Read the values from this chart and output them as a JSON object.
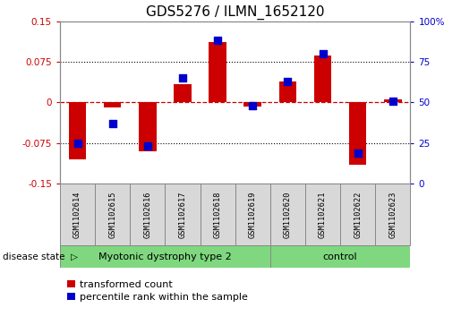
{
  "title": "GDS5276 / ILMN_1652120",
  "categories": [
    "GSM1102614",
    "GSM1102615",
    "GSM1102616",
    "GSM1102617",
    "GSM1102618",
    "GSM1102619",
    "GSM1102620",
    "GSM1102621",
    "GSM1102622",
    "GSM1102623"
  ],
  "red_values": [
    -0.105,
    -0.01,
    -0.09,
    0.033,
    0.112,
    -0.008,
    0.038,
    0.087,
    -0.115,
    0.005
  ],
  "blue_values": [
    25,
    37,
    23,
    65,
    88,
    48,
    63,
    80,
    19,
    51
  ],
  "disease_groups": [
    {
      "label": "Myotonic dystrophy type 2",
      "start": 0,
      "end": 6,
      "color": "#90EE90"
    },
    {
      "label": "control",
      "start": 6,
      "end": 10,
      "color": "#90EE90"
    }
  ],
  "ylim_left": [
    -0.15,
    0.15
  ],
  "ylim_right": [
    0,
    100
  ],
  "yticks_left": [
    -0.15,
    -0.075,
    0,
    0.075,
    0.15
  ],
  "yticks_right": [
    0,
    25,
    50,
    75,
    100
  ],
  "ytick_labels_left": [
    "-0.15",
    "-0.075",
    "0",
    "0.075",
    "0.15"
  ],
  "ytick_labels_right": [
    "0",
    "25",
    "50",
    "75",
    "100%"
  ],
  "hlines_dotted": [
    -0.075,
    0.075
  ],
  "hline_dashed": 0,
  "red_color": "#CC0000",
  "blue_color": "#0000CC",
  "bar_width": 0.5,
  "dot_size": 28,
  "legend_labels": [
    "transformed count",
    "percentile rank within the sample"
  ],
  "disease_state_label": "disease state",
  "sample_box_color": "#d8d8d8",
  "sample_box_edge": "#888888",
  "green_color": "#7FD87F",
  "group_divider": 6
}
